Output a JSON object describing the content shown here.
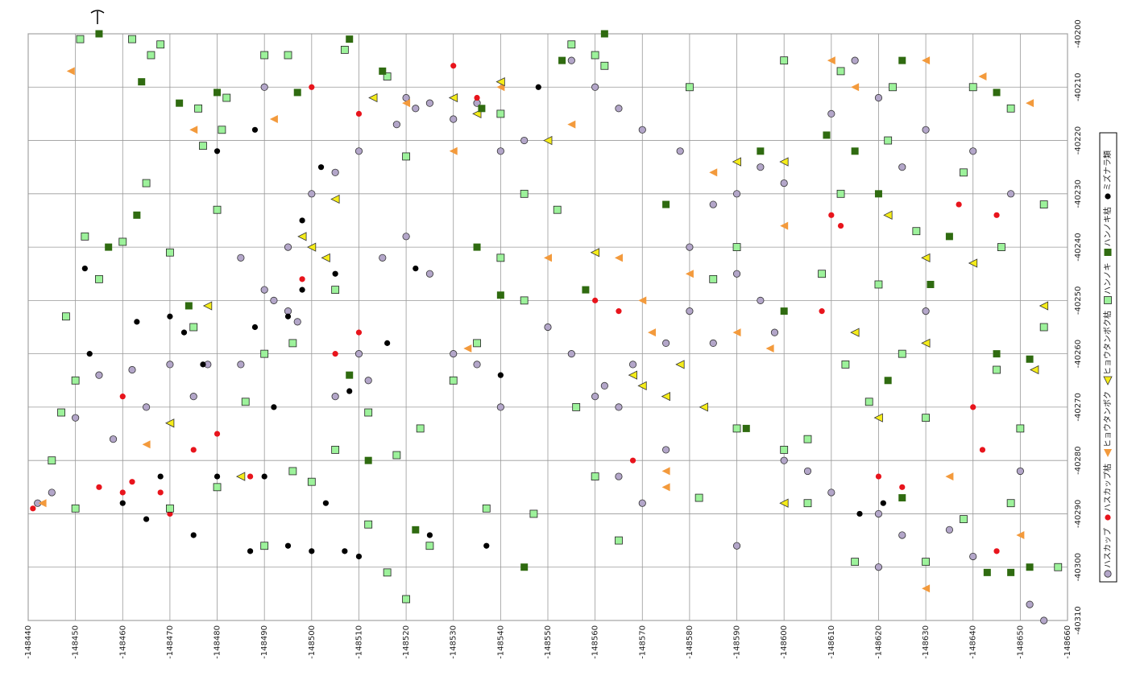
{
  "chart_data": {
    "type": "scatter",
    "xlim": [
      -148440,
      -148660
    ],
    "xticks": [
      -148440,
      -148450,
      -148460,
      -148470,
      -148480,
      -148490,
      -148500,
      -148510,
      -148520,
      -148530,
      -148540,
      -148550,
      -148560,
      -148570,
      -148580,
      -148590,
      -148600,
      -148610,
      -148620,
      -148630,
      -148640,
      -148650,
      -148660
    ],
    "ylim": [
      -40310,
      -40200
    ],
    "yticks": [
      -40200,
      -40210,
      -40220,
      -40230,
      -40240,
      -40250,
      -40260,
      -40270,
      -40280,
      -40290,
      -40300,
      -40310
    ],
    "grid": true,
    "legend": "right",
    "series": [
      {
        "name": "ハスカップ",
        "color": "#b3a6c9",
        "marker": "circle",
        "x": [
          -148520,
          -148522,
          -148518,
          -148525,
          -148510,
          -148505,
          -148500,
          -148495,
          -148490,
          -148492,
          -148495,
          -148497,
          -148485,
          -148478,
          -148470,
          -148462,
          -148455,
          -148450,
          -148445,
          -148442,
          -148458,
          -148465,
          -148475,
          -148485,
          -148490,
          -148530,
          -148535,
          -148540,
          -148550,
          -148555,
          -148560,
          -148562,
          -148565,
          -148568,
          -148575,
          -148580,
          -148585,
          -148590,
          -148595,
          -148600,
          -148578,
          -148570,
          -148565,
          -148560,
          -148555,
          -148545,
          -148540,
          -148535,
          -148530,
          -148515,
          -148520,
          -148525,
          -148600,
          -148605,
          -148610,
          -148620,
          -148625,
          -148635,
          -148640,
          -148655,
          -148652,
          -148620,
          -148590,
          -148565,
          -148570,
          -148575,
          -148610,
          -148620,
          -148630,
          -148640,
          -148625,
          -148615,
          -148590,
          -148595,
          -148598,
          -148580,
          -148585,
          -148510,
          -148512,
          -148505,
          -148630,
          -148648,
          -148650
        ],
        "y": [
          -40212,
          -40214,
          -40217,
          -40213,
          -40222,
          -40226,
          -40230,
          -40240,
          -40248,
          -40250,
          -40252,
          -40254,
          -40262,
          -40262,
          -40262,
          -40263,
          -40264,
          -40272,
          -40286,
          -40288,
          -40276,
          -40270,
          -40268,
          -40242,
          -40210,
          -40260,
          -40262,
          -40270,
          -40255,
          -40260,
          -40268,
          -40266,
          -40270,
          -40262,
          -40258,
          -40240,
          -40232,
          -40230,
          -40225,
          -40228,
          -40222,
          -40218,
          -40214,
          -40210,
          -40205,
          -40220,
          -40222,
          -40213,
          -40216,
          -40242,
          -40238,
          -40245,
          -40280,
          -40282,
          -40286,
          -40290,
          -40294,
          -40293,
          -40298,
          -40310,
          -40307,
          -40300,
          -40296,
          -40283,
          -40288,
          -40278,
          -40215,
          -40212,
          -40218,
          -40222,
          -40225,
          -40205,
          -40245,
          -40250,
          -40256,
          -40252,
          -40258,
          -40260,
          -40265,
          -40268,
          -40252,
          -40230,
          -40282
        ]
      },
      {
        "name": "ハスカップ枯",
        "color": "#e8141c",
        "marker": "dot",
        "x": [
          -148441,
          -148455,
          -148460,
          -148462,
          -148468,
          -148475,
          -148480,
          -148510,
          -148505,
          -148498,
          -148500,
          -148510,
          -148535,
          -148530,
          -148560,
          -148565,
          -148568,
          -148610,
          -148612,
          -148620,
          -148625,
          -148640,
          -148642,
          -148645,
          -148460,
          -148487,
          -148470,
          -148608,
          -148637,
          -148645
        ],
        "y": [
          -40289,
          -40285,
          -40286,
          -40284,
          -40286,
          -40278,
          -40275,
          -40256,
          -40260,
          -40246,
          -40210,
          -40215,
          -40212,
          -40206,
          -40250,
          -40252,
          -40280,
          -40234,
          -40236,
          -40283,
          -40285,
          -40270,
          -40278,
          -40234,
          -40268,
          -40283,
          -40290,
          -40252,
          -40232,
          -40297
        ]
      },
      {
        "name": "ヒョウタンボク",
        "color": "#f39a3c",
        "marker": "triangle",
        "x": [
          -148449,
          -148475,
          -148492,
          -148520,
          -148530,
          -148550,
          -148565,
          -148570,
          -148572,
          -148580,
          -148590,
          -148597,
          -148600,
          -148585,
          -148610,
          -148615,
          -148630,
          -148642,
          -148652,
          -148575,
          -148575,
          -148635,
          -148650,
          -148630,
          -148540,
          -148555,
          -148533,
          -148465,
          -148443
        ],
        "y": [
          -40207,
          -40218,
          -40216,
          -40213,
          -40222,
          -40242,
          -40242,
          -40250,
          -40256,
          -40245,
          -40256,
          -40259,
          -40236,
          -40226,
          -40205,
          -40210,
          -40205,
          -40208,
          -40213,
          -40282,
          -40285,
          -40283,
          -40294,
          -40304,
          -40210,
          -40217,
          -40259,
          -40277,
          -40288
        ]
      },
      {
        "name": "ヒョウタンボク枯",
        "color": "#f5ec1a",
        "marker": "triangle-outline",
        "x": [
          -148503,
          -148498,
          -148500,
          -148505,
          -148530,
          -148535,
          -148550,
          -148560,
          -148568,
          -148570,
          -148575,
          -148578,
          -148590,
          -148600,
          -148615,
          -148622,
          -148630,
          -148640,
          -148655,
          -148653,
          -148478,
          -148470,
          -148485,
          -148620,
          -148630,
          -148600,
          -148583,
          -148540,
          -148513
        ],
        "y": [
          -40242,
          -40238,
          -40240,
          -40231,
          -40212,
          -40215,
          -40220,
          -40241,
          -40264,
          -40266,
          -40268,
          -40262,
          -40224,
          -40224,
          -40256,
          -40234,
          -40242,
          -40243,
          -40251,
          -40263,
          -40251,
          -40273,
          -40283,
          -40272,
          -40258,
          -40288,
          -40270,
          -40209,
          -40212
        ]
      },
      {
        "name": "ハンノキ",
        "color": "#9df29b",
        "marker": "square",
        "x": [
          -148451,
          -148462,
          -148466,
          -148468,
          -148476,
          -148482,
          -148490,
          -148495,
          -148507,
          -148516,
          -148520,
          -148540,
          -148555,
          -148560,
          -148562,
          -148580,
          -148600,
          -148612,
          -148623,
          -148640,
          -148648,
          -148452,
          -148455,
          -148460,
          -148470,
          -148480,
          -148477,
          -148481,
          -148448,
          -148450,
          -148447,
          -148445,
          -148450,
          -148470,
          -148480,
          -148490,
          -148496,
          -148500,
          -148505,
          -148512,
          -148518,
          -148512,
          -148516,
          -148525,
          -148530,
          -148535,
          -148545,
          -148540,
          -148547,
          -148560,
          -148565,
          -148582,
          -148590,
          -148600,
          -148605,
          -148613,
          -148618,
          -148625,
          -148630,
          -148645,
          -148650,
          -148658,
          -148648,
          -148638,
          -148630,
          -148615,
          -148605,
          -148608,
          -148612,
          -148620,
          -148628,
          -148638,
          -148646,
          -148655,
          -148655,
          -148622,
          -148590,
          -148585,
          -148552,
          -148545,
          -148556,
          -148523,
          -148505,
          -148496,
          -148490,
          -148465,
          -148475,
          -148486,
          -148520,
          -148537
        ],
        "y": [
          -40201,
          -40201,
          -40204,
          -40202,
          -40214,
          -40212,
          -40204,
          -40204,
          -40203,
          -40208,
          -40223,
          -40215,
          -40202,
          -40204,
          -40206,
          -40210,
          -40205,
          -40207,
          -40210,
          -40210,
          -40214,
          -40238,
          -40246,
          -40239,
          -40241,
          -40233,
          -40221,
          -40218,
          -40253,
          -40265,
          -40271,
          -40280,
          -40289,
          -40289,
          -40285,
          -40296,
          -40282,
          -40284,
          -40278,
          -40271,
          -40279,
          -40292,
          -40301,
          -40296,
          -40265,
          -40258,
          -40250,
          -40242,
          -40290,
          -40283,
          -40295,
          -40287,
          -40274,
          -40278,
          -40288,
          -40262,
          -40269,
          -40260,
          -40272,
          -40263,
          -40274,
          -40300,
          -40288,
          -40291,
          -40299,
          -40299,
          -40276,
          -40245,
          -40230,
          -40247,
          -40237,
          -40226,
          -40240,
          -40255,
          -40232,
          -40220,
          -40240,
          -40246,
          -40233,
          -40230,
          -40270,
          -40274,
          -40248,
          -40258,
          -40260,
          -40228,
          -40255,
          -40269,
          -40306,
          -40289
        ]
      },
      {
        "name": "ハンノキ枯",
        "color": "#2f6b10",
        "marker": "square-solid",
        "x": [
          -148455,
          -148464,
          -148472,
          -148480,
          -148497,
          -148508,
          -148515,
          -148536,
          -148553,
          -148562,
          -148558,
          -148575,
          -148595,
          -148600,
          -148609,
          -148615,
          -148620,
          -148625,
          -148622,
          -148635,
          -148645,
          -148645,
          -148652,
          -148648,
          -148643,
          -148652,
          -148592,
          -148535,
          -148540,
          -148463,
          -148457,
          -148474,
          -148508,
          -148512,
          -148545,
          -148522,
          -148625,
          -148631
        ],
        "y": [
          -40200,
          -40209,
          -40213,
          -40211,
          -40211,
          -40201,
          -40207,
          -40214,
          -40205,
          -40200,
          -40248,
          -40232,
          -40222,
          -40252,
          -40219,
          -40222,
          -40230,
          -40205,
          -40265,
          -40238,
          -40211,
          -40260,
          -40261,
          -40301,
          -40301,
          -40300,
          -40274,
          -40240,
          -40249,
          -40234,
          -40240,
          -40251,
          -40264,
          -40280,
          -40300,
          -40293,
          -40287,
          -40247
        ]
      },
      {
        "name": "ミズナラ類",
        "color": "#000000",
        "marker": "dot",
        "x": [
          -148452,
          -148480,
          -148488,
          -148502,
          -148498,
          -148505,
          -148498,
          -148495,
          -148488,
          -148470,
          -148473,
          -148463,
          -148465,
          -148460,
          -148468,
          -148475,
          -148480,
          -148490,
          -148492,
          -148503,
          -148500,
          -148507,
          -148510,
          -148495,
          -148487,
          -148508,
          -148516,
          -148522,
          -148525,
          -148537,
          -148540,
          -148548,
          -148616,
          -148621,
          -148453,
          -148477
        ],
        "y": [
          -40244,
          -40222,
          -40218,
          -40225,
          -40235,
          -40245,
          -40248,
          -40253,
          -40255,
          -40253,
          -40256,
          -40254,
          -40291,
          -40288,
          -40283,
          -40294,
          -40283,
          -40283,
          -40270,
          -40288,
          -40297,
          -40297,
          -40298,
          -40296,
          -40297,
          -40267,
          -40258,
          -40244,
          -40294,
          -40296,
          -40264,
          -40210,
          -40290,
          -40288,
          -40260,
          -40262
        ]
      }
    ]
  }
}
